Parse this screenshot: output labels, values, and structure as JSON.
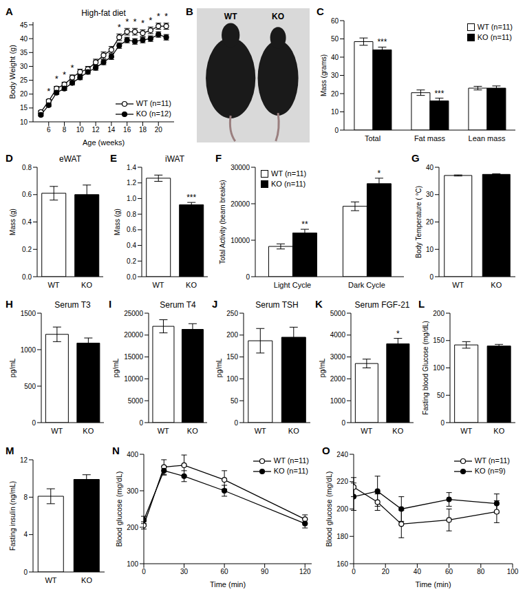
{
  "chart_data": [
    {
      "panel_label": "A",
      "type": "line",
      "title": "High-fat diet",
      "xlabel": "Age (weeks)",
      "ylabel": "Body Weight (g)",
      "x": [
        5,
        6,
        7,
        8,
        9,
        10,
        11,
        12,
        13,
        14,
        15,
        16,
        17,
        18,
        19,
        20,
        21
      ],
      "xlim": [
        4,
        22
      ],
      "xticks": [
        6,
        8,
        10,
        12,
        14,
        16,
        18,
        20
      ],
      "ylim": [
        10,
        46
      ],
      "yticks": [
        10,
        15,
        20,
        25,
        30,
        35,
        40,
        45
      ],
      "legend": "lower right",
      "series": [
        {
          "name": "WT (n=11)",
          "color": "#000000",
          "marker": "hollow_circle",
          "values": [
            13.5,
            17.5,
            22,
            23.5,
            26,
            28,
            29,
            31.5,
            34,
            36,
            40.5,
            42.5,
            42.5,
            42,
            43,
            44.5,
            44.5
          ],
          "errors": [
            0.5,
            0.6,
            0.8,
            0.8,
            0.9,
            1,
            1,
            1.1,
            1.2,
            1.2,
            1.2,
            1.2,
            1.2,
            1.2,
            1.2,
            1.1,
            1.1
          ]
        },
        {
          "name": "KO (n=12)",
          "color": "#000000",
          "marker": "circle",
          "values": [
            12.5,
            16,
            20.5,
            22,
            24,
            26,
            28,
            29.5,
            31.5,
            33.5,
            37.5,
            39.5,
            39,
            39.5,
            40,
            41.5,
            40.5
          ],
          "errors": [
            0.4,
            0.5,
            0.6,
            0.7,
            0.7,
            0.8,
            0.8,
            0.9,
            0.9,
            1,
            1,
            1,
            1,
            1,
            1,
            1,
            1
          ]
        }
      ],
      "significance": [
        null,
        "*",
        "*",
        "*",
        "*",
        null,
        null,
        null,
        null,
        null,
        "*",
        "*",
        "*",
        "*",
        "*",
        "*",
        "*"
      ]
    },
    {
      "panel_label": "B",
      "type": "image",
      "labels": [
        "WT",
        "KO"
      ]
    },
    {
      "panel_label": "C",
      "type": "bar",
      "ylabel": "Mass (grams)",
      "categories": [
        "Total",
        "Fat mass",
        "Lean mass"
      ],
      "ylim": [
        0,
        60
      ],
      "yticks": [
        0,
        10,
        20,
        30,
        40,
        50,
        60
      ],
      "legend": "upper right",
      "series": [
        {
          "name": "WT (n=11)",
          "color": "#ffffff",
          "values": [
            48.5,
            20.5,
            23
          ],
          "errors": [
            2,
            1.5,
            1
          ]
        },
        {
          "name": "KO (n=11)",
          "color": "#000000",
          "values": [
            44,
            16,
            23
          ],
          "errors": [
            1.5,
            1.5,
            1.2
          ],
          "annotations": [
            "***",
            "***",
            null
          ]
        }
      ]
    },
    {
      "panel_label": "D",
      "type": "bar",
      "title": "eWAT",
      "ylabel": "Mass (g)",
      "categories": [
        "WT",
        "KO"
      ],
      "values": [
        0.61,
        0.6
      ],
      "errors": [
        0.05,
        0.07
      ],
      "colors": [
        "#ffffff",
        "#000000"
      ],
      "ylim": [
        0,
        0.8
      ],
      "yticks": [
        {
          "value": 0,
          "label": "0.0"
        },
        0.2,
        0.4,
        0.6,
        0.8
      ]
    },
    {
      "panel_label": "E",
      "type": "bar",
      "title": "iWAT",
      "ylabel": "Mass (g)",
      "categories": [
        "WT",
        "KO"
      ],
      "values": [
        1.26,
        0.92
      ],
      "errors": [
        0.04,
        0.03
      ],
      "colors": [
        "#ffffff",
        "#000000"
      ],
      "annotations": [
        null,
        "***"
      ],
      "ylim": [
        0,
        1.4
      ],
      "yticks": [
        {
          "value": 0,
          "label": "0.0"
        },
        0.2,
        0.4,
        0.6,
        0.8,
        {
          "value": 1,
          "label": "1.0"
        },
        1.2,
        1.4
      ]
    },
    {
      "panel_label": "F",
      "type": "bar",
      "ylabel": "Total Activity (beam breaks)",
      "categories": [
        "Light Cycle",
        "Dark Cycle"
      ],
      "ylim": [
        0,
        30000
      ],
      "yticks": [
        0,
        10000,
        20000,
        30000
      ],
      "legend": "upper left",
      "series": [
        {
          "name": "WT (n=11)",
          "color": "#ffffff",
          "values": [
            8300,
            19300
          ],
          "errors": [
            700,
            1200
          ]
        },
        {
          "name": "KO (n=11)",
          "color": "#000000",
          "values": [
            12000,
            25500
          ],
          "errors": [
            1000,
            1500
          ],
          "annotations": [
            "**",
            "*"
          ]
        }
      ]
    },
    {
      "panel_label": "G",
      "type": "bar",
      "ylabel": "Body Temperature ( °C)",
      "categories": [
        "WT",
        "KO"
      ],
      "values": [
        37,
        37.4
      ],
      "errors": [
        0.2,
        0.2
      ],
      "colors": [
        "#ffffff",
        "#000000"
      ],
      "ylim": [
        0,
        40
      ],
      "yticks": [
        0,
        10,
        20,
        30,
        40
      ]
    },
    {
      "panel_label": "H",
      "type": "bar",
      "title": "Serum T3",
      "ylabel": "pg/mL",
      "categories": [
        "WT",
        "KO"
      ],
      "values": [
        1210,
        1090
      ],
      "errors": [
        100,
        70
      ],
      "colors": [
        "#ffffff",
        "#000000"
      ],
      "ylim": [
        0,
        1500
      ],
      "yticks": [
        0,
        500,
        1000,
        1500
      ]
    },
    {
      "panel_label": "I",
      "type": "bar",
      "title": "Serum T4",
      "ylabel": "pg/mL",
      "categories": [
        "WT",
        "KO"
      ],
      "values": [
        22000,
        21300
      ],
      "errors": [
        1500,
        1300
      ],
      "colors": [
        "#ffffff",
        "#000000"
      ],
      "ylim": [
        0,
        25000
      ],
      "yticks": [
        0,
        5000,
        10000,
        15000,
        20000,
        25000
      ]
    },
    {
      "panel_label": "J",
      "type": "bar",
      "title": "Serum TSH",
      "ylabel": "pg/mL",
      "categories": [
        "WT",
        "KO"
      ],
      "values": [
        187,
        195
      ],
      "errors": [
        28,
        23
      ],
      "colors": [
        "#ffffff",
        "#000000"
      ],
      "ylim": [
        0,
        250
      ],
      "yticks": [
        0,
        50,
        100,
        150,
        200,
        250
      ]
    },
    {
      "panel_label": "K",
      "type": "bar",
      "title": "Serum FGF-21",
      "ylabel": "pg/mL",
      "categories": [
        "WT",
        "KO"
      ],
      "values": [
        2700,
        3600
      ],
      "errors": [
        200,
        250
      ],
      "colors": [
        "#ffffff",
        "#000000"
      ],
      "annotations": [
        null,
        "*"
      ],
      "ylim": [
        0,
        5000
      ],
      "yticks": [
        0,
        1000,
        2000,
        3000,
        4000,
        5000
      ]
    },
    {
      "panel_label": "L",
      "type": "bar",
      "ylabel": "Fasting blood Glucose (mg/dL)",
      "categories": [
        "WT",
        "KO"
      ],
      "values": [
        142,
        140
      ],
      "errors": [
        6,
        3
      ],
      "colors": [
        "#ffffff",
        "#000000"
      ],
      "ylim": [
        0,
        200
      ],
      "yticks": [
        0,
        50,
        100,
        150,
        200
      ]
    },
    {
      "panel_label": "M",
      "type": "bar",
      "ylabel": "Fasting insulin (ng/mL)",
      "categories": [
        "WT",
        "KO"
      ],
      "values": [
        8.1,
        9.9
      ],
      "errors": [
        0.8,
        0.5
      ],
      "colors": [
        "#ffffff",
        "#000000"
      ],
      "ylim": [
        0,
        12
      ],
      "yticks": [
        0,
        4,
        8,
        12
      ]
    },
    {
      "panel_label": "N",
      "type": "line",
      "xlabel": "Time (min)",
      "ylabel": "Blood glucose (mg/dL)",
      "x": [
        0,
        15,
        30,
        60,
        120
      ],
      "xlim": [
        0,
        125
      ],
      "xticks": [
        0,
        30,
        60,
        90,
        120
      ],
      "ylim": [
        100,
        400
      ],
      "yticks": [
        100,
        200,
        300,
        400
      ],
      "legend": "upper right",
      "series": [
        {
          "name": "WT (n=11)",
          "color": "#000000",
          "marker": "hollow_circle",
          "values": [
            205,
            365,
            370,
            330,
            222
          ],
          "errors": [
            10,
            20,
            28,
            25,
            12
          ]
        },
        {
          "name": "KO (n=11)",
          "color": "#000000",
          "marker": "circle",
          "values": [
            220,
            355,
            340,
            300,
            210
          ],
          "errors": [
            10,
            12,
            15,
            15,
            12
          ]
        }
      ]
    },
    {
      "panel_label": "O",
      "type": "line",
      "xlabel": "Time (min)",
      "ylabel": "Blood glucose (mg/dL)",
      "x": [
        0,
        15,
        30,
        60,
        90
      ],
      "xlim": [
        0,
        100
      ],
      "xticks": [
        0,
        20,
        40,
        60,
        80,
        100
      ],
      "ylim": [
        160,
        240
      ],
      "yticks": [
        160,
        180,
        200,
        220,
        240
      ],
      "legend": "upper right",
      "series": [
        {
          "name": "WT (n=11)",
          "color": "#000000",
          "marker": "hollow_circle",
          "values": [
            216,
            205,
            189,
            192,
            198
          ],
          "errors": [
            7,
            6,
            10,
            8,
            8
          ]
        },
        {
          "name": "KO (n=9)",
          "color": "#000000",
          "marker": "circle",
          "values": [
            209,
            213,
            200,
            207,
            204
          ],
          "errors": [
            10,
            11,
            9,
            5,
            7
          ]
        }
      ]
    }
  ]
}
